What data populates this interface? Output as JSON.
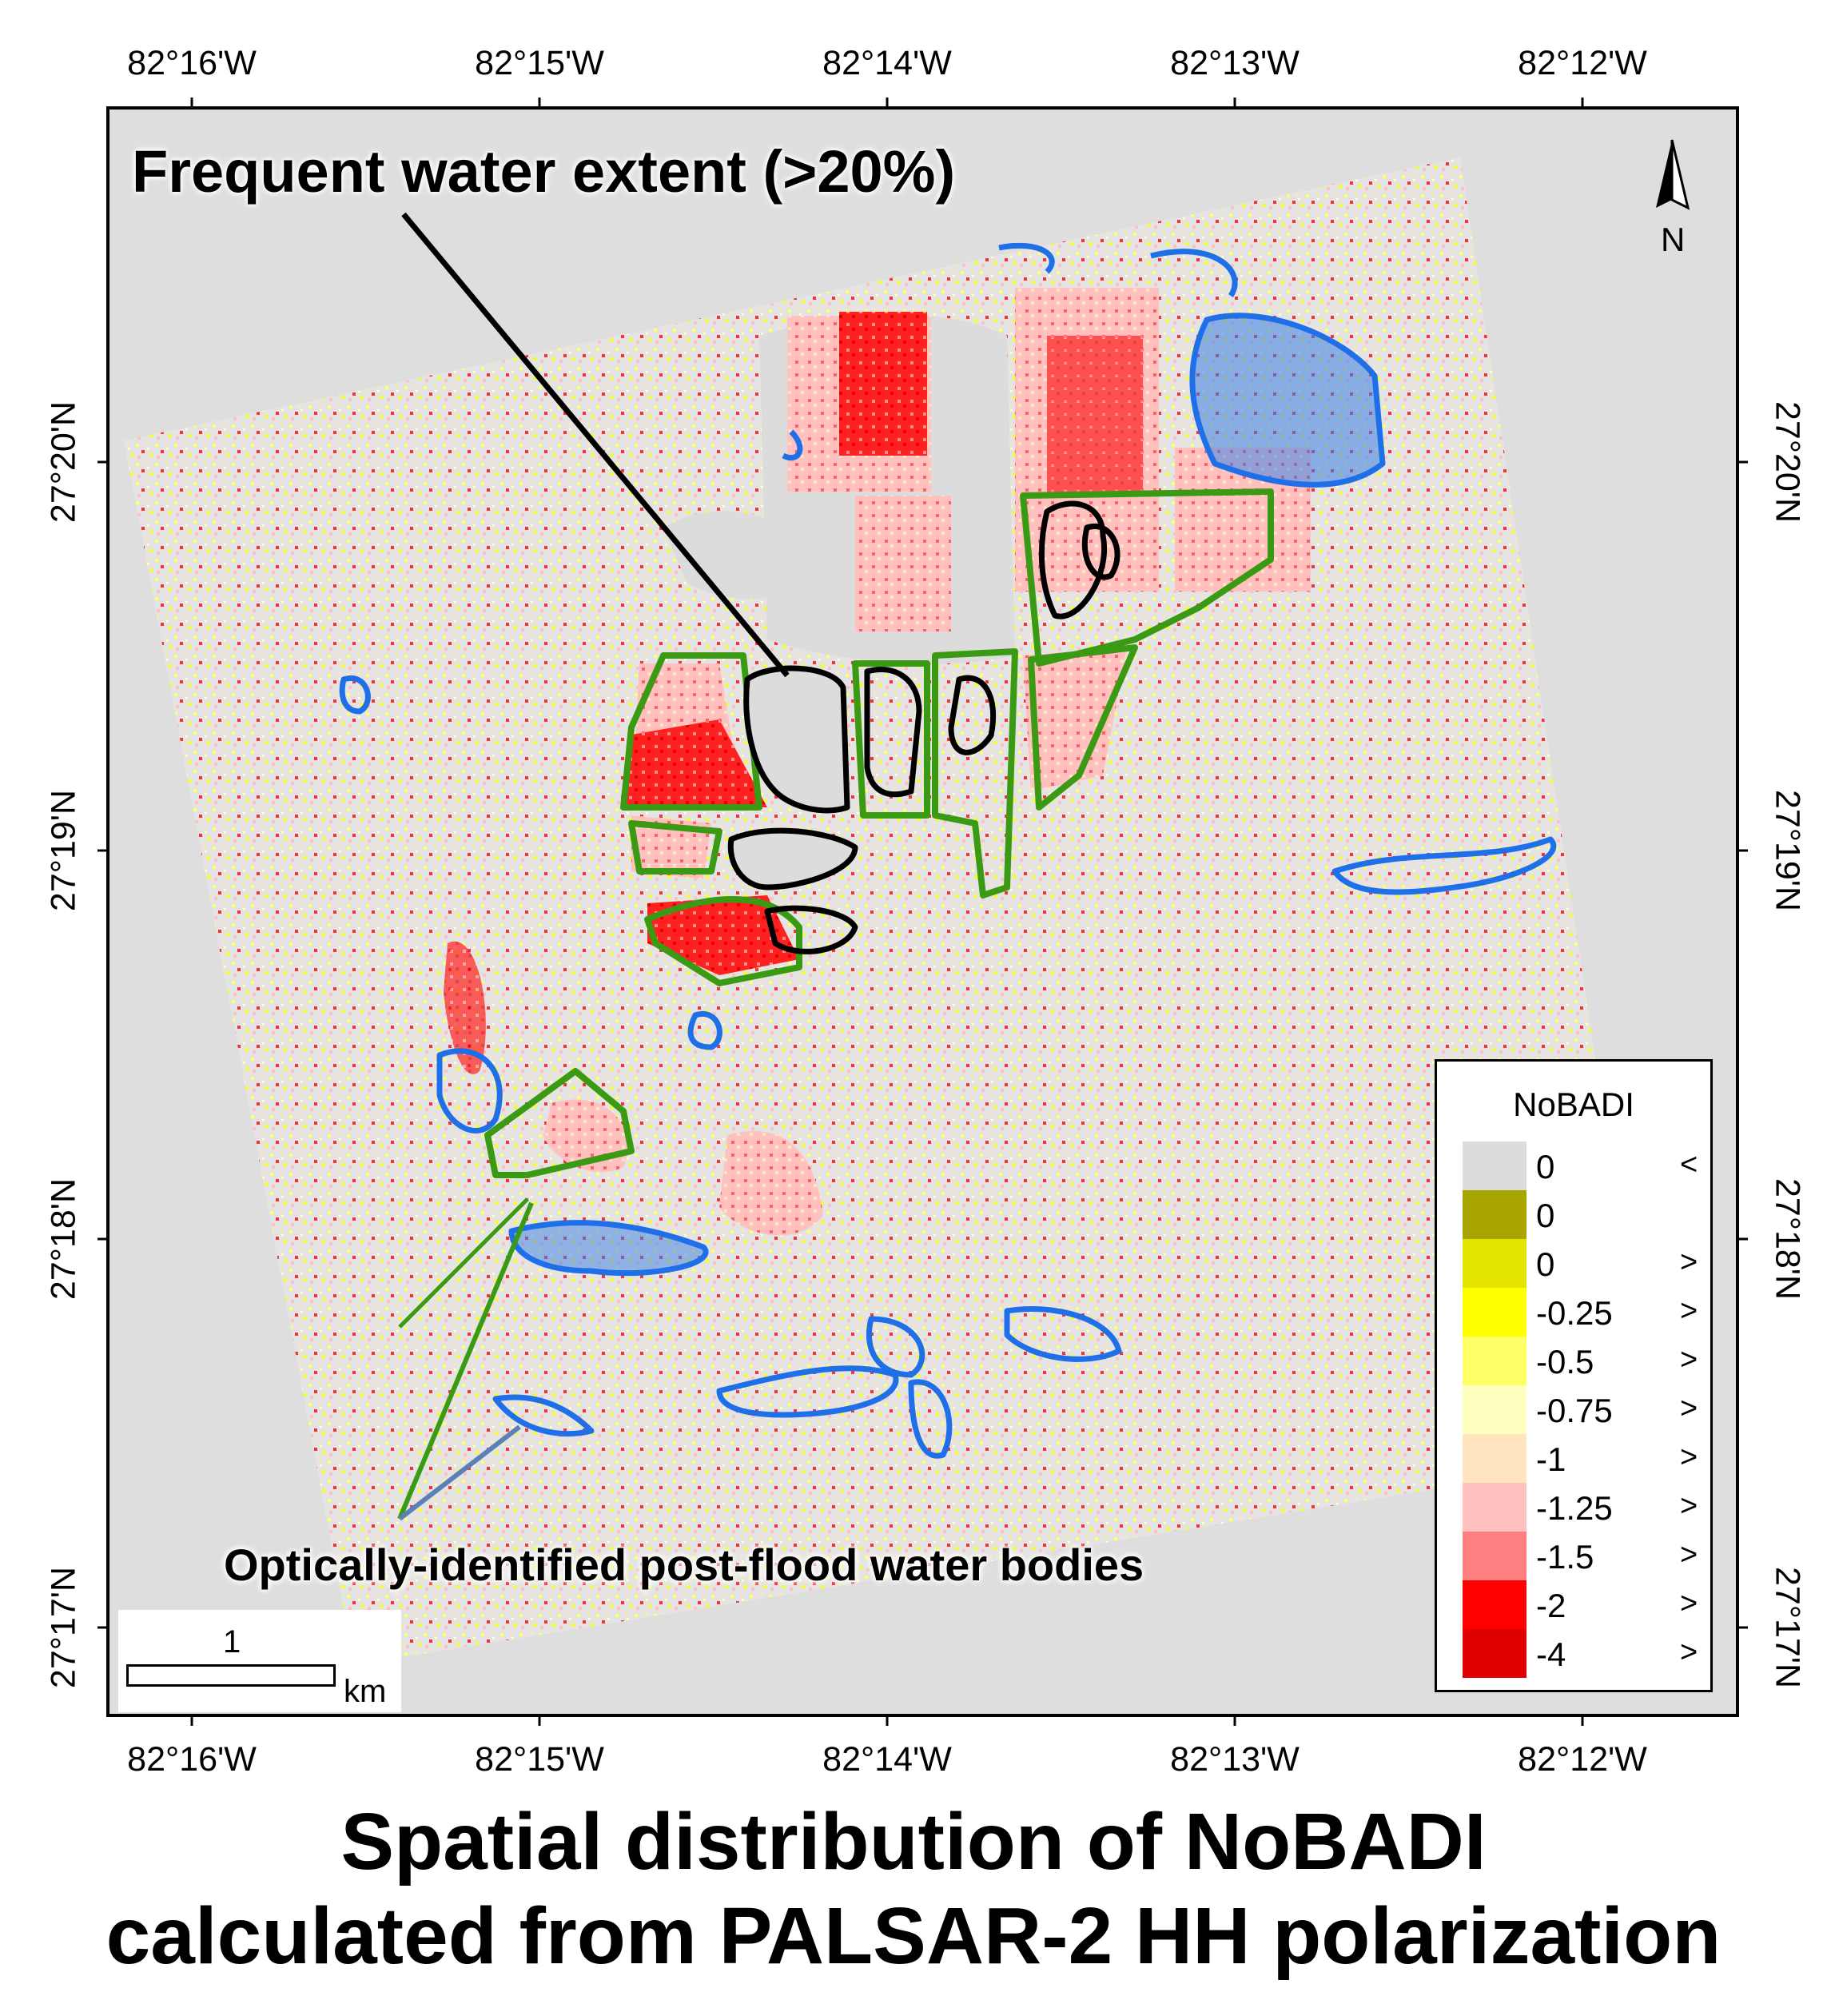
{
  "axes": {
    "top_ticks": [
      "82°16'W",
      "82°15'W",
      "82°14'W",
      "82°13'W",
      "82°12'W"
    ],
    "bottom_ticks": [
      "82°16'W",
      "82°15'W",
      "82°14'W",
      "82°13'W",
      "82°12'W"
    ],
    "left_ticks": [
      "27°20'N",
      "27°19'N",
      "27°18'N",
      "27°17'N"
    ],
    "right_ticks": [
      "27°20'N",
      "27°19'N",
      "27°18'N",
      "27°17'N"
    ]
  },
  "annotations": {
    "frequent_water": "Frequent water extent (>20%)",
    "optical_water": "Optically-identified post-flood water bodies"
  },
  "north_arrow": {
    "label": "N",
    "icon": "north-arrow-icon"
  },
  "scale_bar": {
    "value": "1",
    "unit": "km"
  },
  "legend": {
    "title": "NoBADI",
    "items": [
      {
        "value": "0",
        "symbol": "<",
        "color": "#DCDCDC"
      },
      {
        "value": "0",
        "symbol": "",
        "color": "#A8A400"
      },
      {
        "value": "0",
        "symbol": ">",
        "color": "#E4E400"
      },
      {
        "value": "-0.25",
        "symbol": ">",
        "color": "#FFFF00"
      },
      {
        "value": "-0.5",
        "symbol": ">",
        "color": "#FFFF66"
      },
      {
        "value": "-0.75",
        "symbol": ">",
        "color": "#FFFFC0"
      },
      {
        "value": "-1",
        "symbol": ">",
        "color": "#FFE4C0"
      },
      {
        "value": "-1.25",
        "symbol": ">",
        "color": "#FFC0C0"
      },
      {
        "value": "-1.5",
        "symbol": ">",
        "color": "#FF8080"
      },
      {
        "value": "-2",
        "symbol": ">",
        "color": "#FF0000"
      },
      {
        "value": "-4",
        "symbol": ">",
        "color": "#E00000"
      }
    ]
  },
  "colors": {
    "background_gray": "#DEDEDE",
    "frequent_water_outline": "#000000",
    "optical_water_outline": "#1F6FE8",
    "field_outline": "#3A9A14"
  },
  "title_lines": [
    "Spatial distribution of NoBADI",
    "calculated from PALSAR-2 HH polarization"
  ]
}
